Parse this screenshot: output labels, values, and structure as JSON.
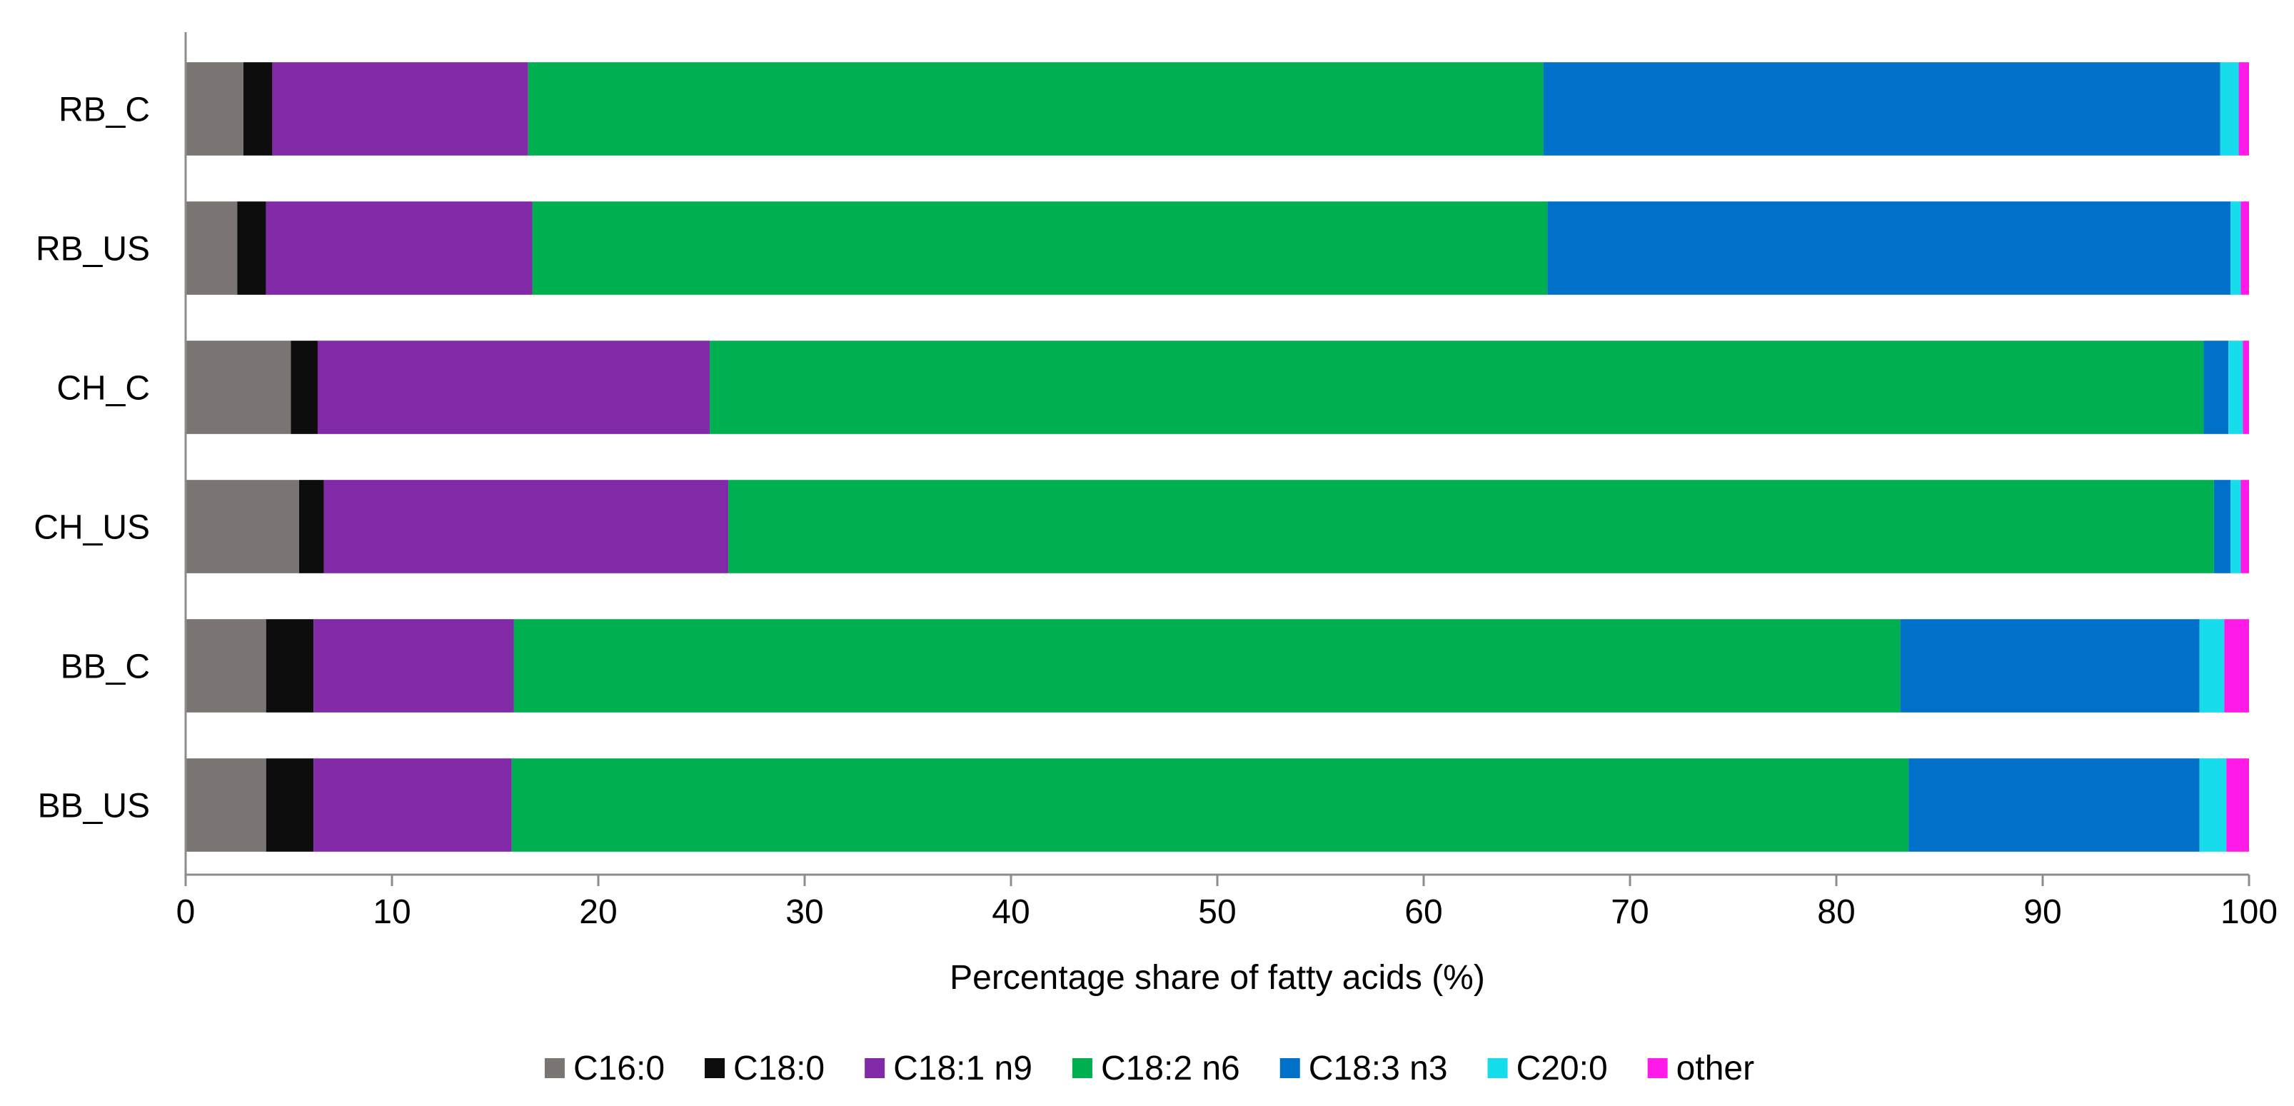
{
  "chart_data": {
    "type": "bar",
    "orientation": "horizontal",
    "stacked": true,
    "categories": [
      "RB_C",
      "RB_US",
      "CH_C",
      "CH_US",
      "BB_C",
      "BB_US"
    ],
    "series": [
      {
        "name": "C16:0",
        "color": "#7a7472",
        "values": [
          2.8,
          2.5,
          5.1,
          5.5,
          3.9,
          3.9
        ]
      },
      {
        "name": "C18:0",
        "color": "#0d0d0d",
        "values": [
          1.4,
          1.4,
          1.3,
          1.2,
          2.3,
          2.3
        ]
      },
      {
        "name": "C18:1 n9",
        "color": "#8129a6",
        "values": [
          12.4,
          12.9,
          19.0,
          19.6,
          9.7,
          9.6
        ]
      },
      {
        "name": "C18:2 n6",
        "color": "#00b050",
        "values": [
          49.2,
          49.2,
          72.4,
          72.0,
          67.2,
          67.7
        ]
      },
      {
        "name": "C18:3 n3",
        "color": "#0070c8",
        "values": [
          32.8,
          33.1,
          1.2,
          0.8,
          14.5,
          14.1
        ]
      },
      {
        "name": "C20:0",
        "color": "#16dcec",
        "values": [
          0.9,
          0.5,
          0.7,
          0.5,
          1.2,
          1.3
        ]
      },
      {
        "name": "other",
        "color": "#ff1ae8",
        "values": [
          0.5,
          0.4,
          0.3,
          0.4,
          1.2,
          1.1
        ]
      }
    ],
    "title": "",
    "xlabel": "Percentage share of fatty acids (%)",
    "ylabel": "",
    "xlim": [
      0,
      100
    ],
    "xticks": [
      "0",
      "10",
      "20",
      "30",
      "40",
      "50",
      "60",
      "70",
      "80",
      "90",
      "100"
    ],
    "grid": false,
    "legend_position": "bottom"
  }
}
